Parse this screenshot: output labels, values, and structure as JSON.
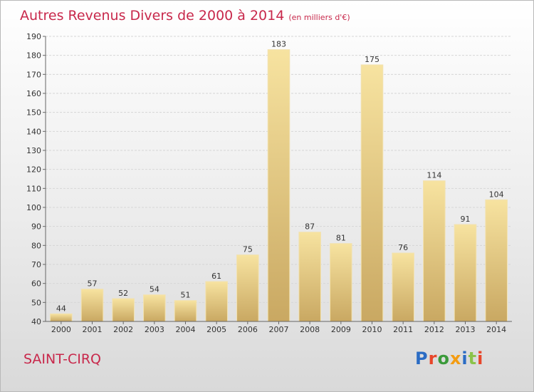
{
  "title": "Autres Revenus Divers de 2000 à 2014",
  "subtitle": "(en milliers d'€)",
  "commune": "SAINT-CIRQ",
  "logo": {
    "text": "Proxiti",
    "colors": [
      "#2b6cc4",
      "#e8462a",
      "#3a9a3a",
      "#f39c12",
      "#2b6cc4",
      "#8bc34a",
      "#e8462a"
    ]
  },
  "chart_data": {
    "type": "bar",
    "categories": [
      "2000",
      "2001",
      "2002",
      "2003",
      "2004",
      "2005",
      "2006",
      "2007",
      "2008",
      "2009",
      "2010",
      "2011",
      "2012",
      "2013",
      "2014"
    ],
    "values": [
      44,
      57,
      52,
      54,
      51,
      61,
      75,
      183,
      87,
      81,
      175,
      76,
      114,
      91,
      104
    ],
    "ylim": [
      40,
      190
    ],
    "yticks": [
      40,
      50,
      60,
      70,
      80,
      90,
      100,
      110,
      120,
      130,
      140,
      150,
      160,
      170,
      180,
      190
    ],
    "grid": true,
    "bar_color": "#e9cf8a"
  }
}
